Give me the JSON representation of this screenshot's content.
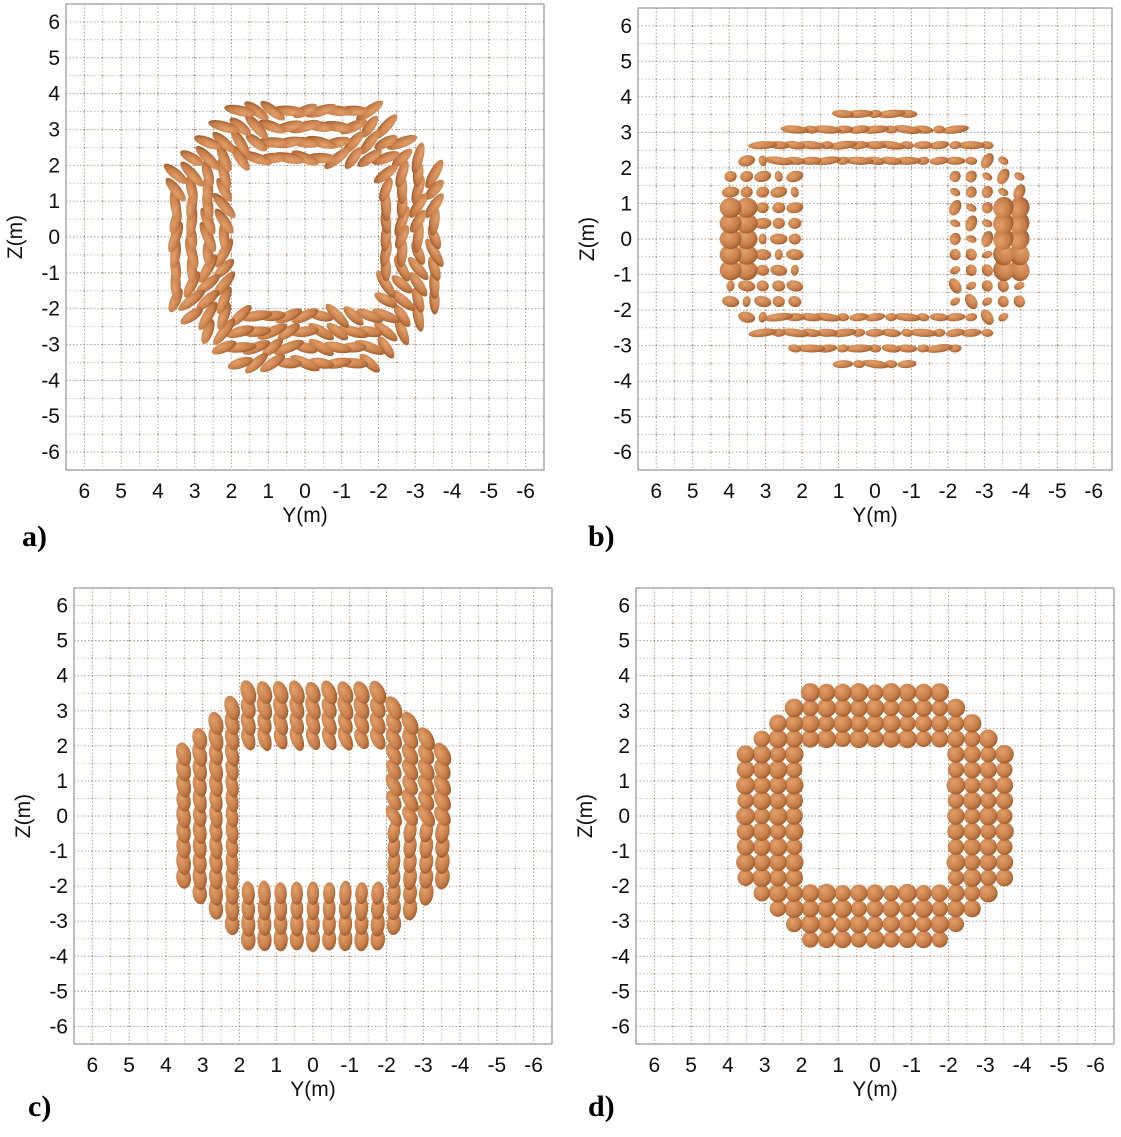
{
  "colors": {
    "glyph": "#c87f4b",
    "glyph_light": "#e2a06a",
    "glyph_dark": "#9a5a2c",
    "grid": "#9a9a9a"
  },
  "panels": [
    {
      "id": "a",
      "label": "a)",
      "xlabel": "Y(m)",
      "ylabel": "Z(m)",
      "style": "tilted"
    },
    {
      "id": "b",
      "label": "b)",
      "xlabel": "Y(m)",
      "ylabel": "Z(m)",
      "style": "ellipse"
    },
    {
      "id": "c",
      "label": "c)",
      "xlabel": "Y(m)",
      "ylabel": "Z(m)",
      "style": "vertical"
    },
    {
      "id": "d",
      "label": "d)",
      "xlabel": "Y(m)",
      "ylabel": "Z(m)",
      "style": "round"
    }
  ],
  "chart_data": {
    "type": "scatter",
    "xlim": [
      6.5,
      -6.5
    ],
    "ylim": [
      -6.5,
      6.5
    ],
    "x_ticks": [
      "6",
      "5",
      "4",
      "3",
      "2",
      "1",
      "0",
      "-1",
      "-2",
      "-3",
      "-4",
      "-5",
      "-6"
    ],
    "y_ticks": [
      "6",
      "5",
      "4",
      "3",
      "2",
      "1",
      "0",
      "-1",
      "-2",
      "-3",
      "-4",
      "-5",
      "-6"
    ],
    "grid": true
  }
}
